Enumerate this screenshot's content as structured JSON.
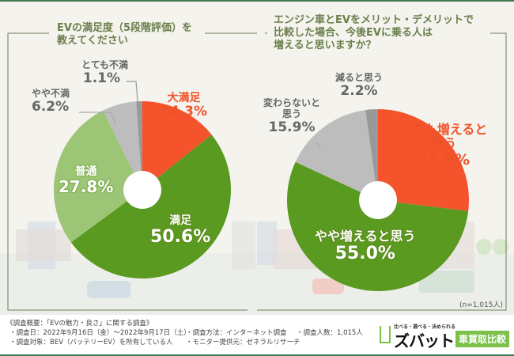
{
  "chart_data": [
    {
      "type": "pie",
      "title": "EVの満足度（5段階評価）を教えてください",
      "title_lines": [
        "EVの満足度（5段階評価）を",
        "教えてください"
      ],
      "slices": [
        {
          "label": "大満足",
          "value": 14.3,
          "display": "14.3%",
          "color": "#f4532b"
        },
        {
          "label": "満足",
          "value": 50.6,
          "display": "50.6%",
          "color": "#5a9a20"
        },
        {
          "label": "普通",
          "value": 27.8,
          "display": "27.8%",
          "color": "#9dc576"
        },
        {
          "label": "やや不満",
          "value": 6.2,
          "display": "6.2%",
          "color": "#bdbdbd"
        },
        {
          "label": "とても不満",
          "value": 1.1,
          "display": "1.1%",
          "color": "#999999"
        }
      ],
      "start": "12 o'clock",
      "direction": "clockwise",
      "donut_hole": true
    },
    {
      "type": "pie",
      "title": "エンジン車とEVをメリット・デメリットで比較した場合、今後EVに乗る人は増えると思いますか？",
      "title_lines": [
        "エンジン車とEVをメリット・デメリットで",
        "比較した場合、今後EVに乗る人は",
        "増えると思いますか？"
      ],
      "slices": [
        {
          "label": "とても増えると思う",
          "value": 26.9,
          "display": "26.9%",
          "color": "#f4532b"
        },
        {
          "label": "やや増えると思う",
          "value": 55.0,
          "display": "55.0%",
          "color": "#5a9a20"
        },
        {
          "label": "変わらないと思う",
          "value": 15.9,
          "display": "15.9%",
          "color": "#bdbdbd"
        },
        {
          "label": "減ると思う",
          "value": 2.2,
          "display": "2.2%",
          "color": "#999999"
        }
      ],
      "start": "12 o'clock",
      "direction": "clockwise",
      "donut_hole": true,
      "sample_size": "(n=1,015人)"
    }
  ],
  "labels": {
    "left": {
      "very_dissatisfied": {
        "name": "とても不満",
        "pct": "1.1%"
      },
      "somewhat_dissatisfied": {
        "name": "やや不満",
        "pct": "6.2%"
      },
      "very_satisfied": {
        "name": "大満足",
        "pct": "14.3%"
      },
      "neutral": {
        "name": "普通",
        "pct": "27.8%"
      },
      "satisfied": {
        "name": "満足",
        "pct": "50.6%"
      }
    },
    "right": {
      "decrease": {
        "name": "減ると思う",
        "pct": "2.2%"
      },
      "no_change": {
        "name_1": "変わらないと",
        "name_2": "思う",
        "pct": "15.9%"
      },
      "much_increase": {
        "name_1": "とても増えると",
        "name_2": "思う",
        "pct": "26.9%"
      },
      "somewhat_increase": {
        "name": "やや増えると思う",
        "pct": "55.0%"
      }
    }
  },
  "footer": {
    "heading": "《調査概要：「EVの魅力・良さ」に関する調査》",
    "date": "・調査日：2022年9月16日（金）～2022年9月17日（土）",
    "method": "・調査方法：インターネット調査",
    "count": "・調査人数：1,015人",
    "target": "・調査対象：BEV（バッテリーEV）を所有している人",
    "provider": "・モニター提供元：ゼネラルリサーチ"
  },
  "logo": {
    "tagline": "比べる・選べる・決められる",
    "name": "ズバット",
    "badge": "車買取比較"
  },
  "colors": {
    "frame": "#3e7a4f",
    "title": "#6a7f4a",
    "accent_red": "#f4532b",
    "accent_green": "#5a9a20",
    "light_green": "#9dc576",
    "logo_green": "#7cc24a"
  }
}
